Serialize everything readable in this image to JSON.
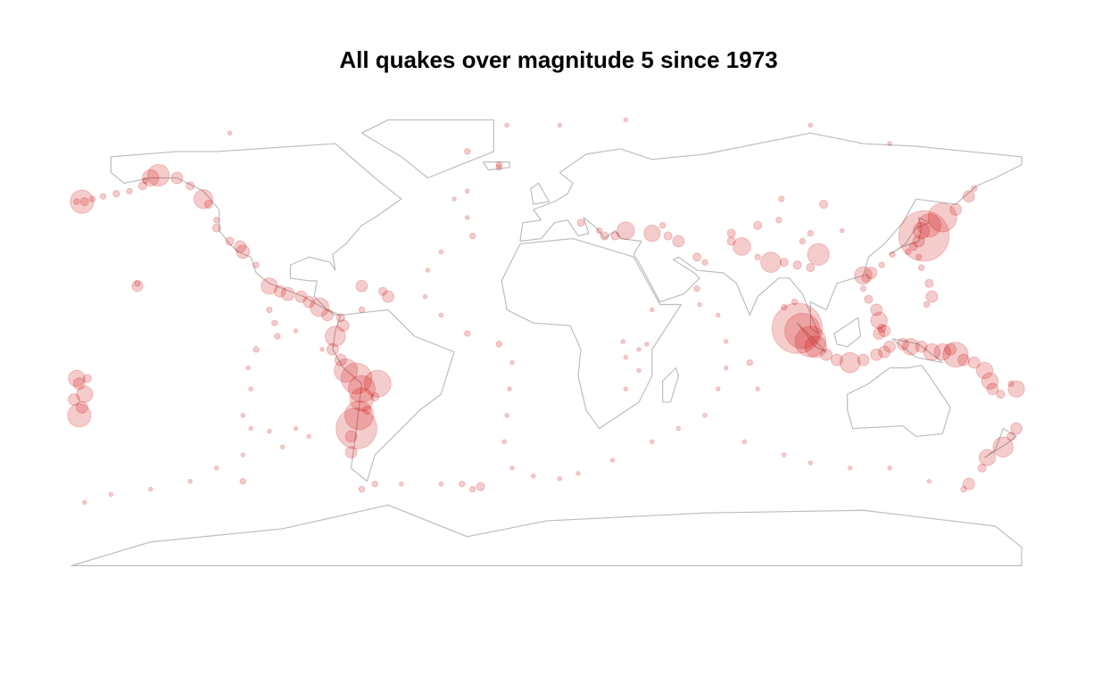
{
  "chart_data": {
    "type": "scatter",
    "title": "All quakes over magnitude 5 since 1973",
    "xlim": [
      -180,
      180
    ],
    "ylim": [
      -90,
      90
    ],
    "color": "#cc0000",
    "opacity": 0.2,
    "points": [
      [
        -178,
        51,
        6
      ],
      [
        -176,
        51,
        8
      ],
      [
        -175,
        51,
        6.5
      ],
      [
        -172,
        52,
        6
      ],
      [
        -168,
        53,
        6
      ],
      [
        -163,
        54,
        6.2
      ],
      [
        -158,
        55,
        6
      ],
      [
        -153,
        57,
        6.5
      ],
      [
        -150,
        60,
        7.5
      ],
      [
        -147,
        61,
        7.9
      ],
      [
        -140,
        60,
        7
      ],
      [
        -135,
        57,
        6.5
      ],
      [
        -130,
        52,
        7.7
      ],
      [
        -128,
        50,
        6.5
      ],
      [
        -152,
        59,
        6
      ],
      [
        162,
        56,
        6
      ],
      [
        160,
        53,
        7
      ],
      [
        155,
        48,
        7
      ],
      [
        150,
        45,
        8.3
      ],
      [
        145,
        42,
        8
      ],
      [
        143,
        38,
        9.1
      ],
      [
        142,
        40,
        7.5
      ],
      [
        141,
        36,
        7
      ],
      [
        139,
        34,
        6.5
      ],
      [
        137,
        32,
        6
      ],
      [
        131,
        31,
        6
      ],
      [
        127,
        27,
        6
      ],
      [
        123,
        24,
        7
      ],
      [
        121,
        22,
        6.5
      ],
      [
        120,
        18,
        6
      ],
      [
        122,
        14,
        6.5
      ],
      [
        125,
        10,
        7
      ],
      [
        126,
        6,
        7.5
      ],
      [
        127,
        3,
        6.5
      ],
      [
        126,
        1,
        7
      ],
      [
        128,
        2,
        7
      ],
      [
        141,
        30,
        6
      ],
      [
        142,
        26,
        6
      ],
      [
        145,
        20,
        6.5
      ],
      [
        146,
        15,
        7
      ],
      [
        144,
        12,
        6
      ],
      [
        95,
        3,
        9.1
      ],
      [
        97,
        2,
        8.6
      ],
      [
        100,
        -2,
        8.4
      ],
      [
        102,
        -4,
        7.9
      ],
      [
        106,
        -7,
        7
      ],
      [
        110,
        -9,
        7
      ],
      [
        115,
        -10,
        7.8
      ],
      [
        120,
        -9,
        7
      ],
      [
        125,
        -7,
        7
      ],
      [
        128,
        -6,
        7
      ],
      [
        130,
        -4,
        7
      ],
      [
        135,
        -3,
        7
      ],
      [
        138,
        -4,
        7.5
      ],
      [
        142,
        -4,
        7
      ],
      [
        146,
        -6,
        7.5
      ],
      [
        150,
        -6,
        7.5
      ],
      [
        153,
        -5,
        7
      ],
      [
        155,
        -7,
        8.1
      ],
      [
        158,
        -9,
        7
      ],
      [
        162,
        -10,
        7
      ],
      [
        166,
        -13,
        7.5
      ],
      [
        168,
        -17,
        7.5
      ],
      [
        169,
        -20,
        7
      ],
      [
        172,
        -22,
        6.5
      ],
      [
        176,
        -18,
        6
      ],
      [
        178,
        -20,
        7.5
      ],
      [
        -177,
        -18,
        7
      ],
      [
        -175,
        -22,
        7.5
      ],
      [
        -176,
        -27,
        7
      ],
      [
        -177,
        -30,
        8
      ],
      [
        -178,
        -16,
        7.5
      ],
      [
        -174,
        -16,
        6.5
      ],
      [
        -179,
        -24,
        7
      ],
      [
        178,
        -35,
        7
      ],
      [
        176,
        -38,
        6.5
      ],
      [
        173,
        -42,
        7.8
      ],
      [
        167,
        -46,
        7.5
      ],
      [
        165,
        -50,
        6.5
      ],
      [
        160,
        -56,
        7
      ],
      [
        158,
        -58,
        6
      ],
      [
        70,
        36,
        6.5
      ],
      [
        74,
        34,
        7.6
      ],
      [
        80,
        30,
        6
      ],
      [
        85,
        28,
        7.8
      ],
      [
        90,
        28,
        6.5
      ],
      [
        95,
        27,
        6.5
      ],
      [
        100,
        26,
        6.5
      ],
      [
        103,
        31,
        7.9
      ],
      [
        97,
        36,
        6
      ],
      [
        80,
        42,
        6.5
      ],
      [
        88,
        44,
        6
      ],
      [
        100,
        39,
        6
      ],
      [
        60,
        28,
        6
      ],
      [
        57,
        30,
        6.5
      ],
      [
        50,
        36,
        7
      ],
      [
        46,
        38,
        6.5
      ],
      [
        40,
        39,
        7.5
      ],
      [
        30,
        40,
        7.6
      ],
      [
        26,
        38,
        6.5
      ],
      [
        22,
        38,
        6.5
      ],
      [
        20,
        40,
        6
      ],
      [
        13,
        43,
        6.3
      ],
      [
        44,
        42,
        6
      ],
      [
        70,
        39,
        6.5
      ],
      [
        105,
        50,
        6.5
      ],
      [
        120,
        23,
        7.6
      ],
      [
        112,
        40,
        5.5
      ],
      [
        89,
        52,
        6
      ],
      [
        57,
        18,
        6
      ],
      [
        90,
        11,
        6
      ],
      [
        94,
        13,
        6
      ],
      [
        -30,
        70,
        6
      ],
      [
        -18,
        65,
        6
      ],
      [
        -30,
        55,
        5.5
      ],
      [
        -35,
        52,
        5.5
      ],
      [
        -30,
        45,
        5.5
      ],
      [
        -28,
        38,
        6
      ],
      [
        -40,
        32,
        5.5
      ],
      [
        -45,
        25,
        5.5
      ],
      [
        -46,
        15,
        5.5
      ],
      [
        -40,
        8,
        5.5
      ],
      [
        -30,
        1,
        6
      ],
      [
        -18,
        -3,
        6
      ],
      [
        -13,
        -10,
        5.5
      ],
      [
        -14,
        -20,
        5.5
      ],
      [
        -15,
        -30,
        5.5
      ],
      [
        -16,
        -40,
        5.5
      ],
      [
        -13,
        -50,
        5.5
      ],
      [
        -5,
        -53,
        5.5
      ],
      [
        5,
        -54,
        5.5
      ],
      [
        -25,
        -57,
        6.5
      ],
      [
        -28,
        -58,
        6
      ],
      [
        -32,
        -56,
        6
      ],
      [
        -40,
        -56,
        5.5
      ],
      [
        -55,
        -56,
        5.5
      ],
      [
        -70,
        -58,
        6
      ],
      [
        58,
        12,
        5.5
      ],
      [
        65,
        8,
        5.5
      ],
      [
        68,
        -2,
        5.5
      ],
      [
        68,
        -12,
        5.5
      ],
      [
        65,
        -20,
        5.5
      ],
      [
        60,
        -30,
        5.5
      ],
      [
        50,
        -35,
        5.5
      ],
      [
        40,
        -40,
        5.5
      ],
      [
        25,
        -47,
        5.5
      ],
      [
        12,
        -52,
        5.5
      ],
      [
        75,
        -40,
        5.5
      ],
      [
        90,
        -45,
        5.5
      ],
      [
        100,
        -48,
        5.5
      ],
      [
        115,
        -50,
        5.5
      ],
      [
        130,
        -50,
        5.5
      ],
      [
        145,
        -55,
        5.5
      ],
      [
        77,
        -10,
        6
      ],
      [
        80,
        -20,
        5.5
      ],
      [
        35,
        -5,
        5.5
      ],
      [
        30,
        -8,
        5.5
      ],
      [
        29,
        -2,
        5.5
      ],
      [
        35,
        -13,
        5.5
      ],
      [
        30,
        -20,
        5.5
      ],
      [
        40,
        10,
        5.5
      ],
      [
        38,
        -3,
        5.5
      ],
      [
        -125,
        44,
        6
      ],
      [
        -125,
        41,
        6.5
      ],
      [
        -120,
        36,
        6.5
      ],
      [
        -116,
        34,
        7
      ],
      [
        -115,
        32,
        7.2
      ],
      [
        -110,
        27,
        6
      ],
      [
        -105,
        19,
        7.5
      ],
      [
        -101,
        17,
        7
      ],
      [
        -98,
        16,
        7.2
      ],
      [
        -93,
        15,
        7
      ],
      [
        -90,
        13,
        7
      ],
      [
        -86,
        11,
        7.7
      ],
      [
        -83,
        8,
        7
      ],
      [
        -78,
        7,
        6.5
      ],
      [
        -77,
        4,
        7
      ],
      [
        -80,
        0,
        7.8
      ],
      [
        -81,
        -5,
        7
      ],
      [
        -78,
        -9,
        7
      ],
      [
        -76,
        -13,
        8
      ],
      [
        -72,
        -16,
        8.4
      ],
      [
        -70,
        -20,
        8.2
      ],
      [
        -70,
        -24,
        8
      ],
      [
        -71,
        -30,
        8.3
      ],
      [
        -72,
        -35,
        8.8
      ],
      [
        -74,
        -38,
        7
      ],
      [
        -74,
        -44,
        7
      ],
      [
        -65,
        -23,
        6.5
      ],
      [
        -64,
        -18,
        8.2
      ],
      [
        -68,
        -28,
        6.5
      ],
      [
        -60,
        15,
        7
      ],
      [
        -62,
        17,
        6.5
      ],
      [
        -70,
        19,
        7
      ],
      [
        -70,
        10,
        6
      ],
      [
        -65,
        -56,
        6
      ],
      [
        -105,
        10,
        6
      ],
      [
        -103,
        5,
        6
      ],
      [
        -102,
        0,
        6
      ],
      [
        -110,
        -5,
        6
      ],
      [
        -113,
        -12,
        5.5
      ],
      [
        -112,
        -20,
        5.5
      ],
      [
        -115,
        -30,
        5.5
      ],
      [
        -112,
        -35,
        5.5
      ],
      [
        -105,
        -36,
        5.5
      ],
      [
        -95,
        -35,
        5.5
      ],
      [
        -90,
        -38,
        5.5
      ],
      [
        -100,
        -42,
        5.5
      ],
      [
        -115,
        -45,
        5.5
      ],
      [
        -125,
        -50,
        5.5
      ],
      [
        -135,
        -55,
        5.5
      ],
      [
        -150,
        -58,
        5.5
      ],
      [
        -165,
        -60,
        5.5
      ],
      [
        -175,
        -63,
        5.5
      ],
      [
        -115,
        -55,
        6
      ],
      [
        -85,
        -5,
        5.5
      ],
      [
        -95,
        2,
        5.5
      ],
      [
        -155,
        19,
        6.9
      ],
      [
        -155,
        20,
        6
      ],
      [
        -18,
        64,
        6
      ],
      [
        -120,
        77,
        5.5
      ],
      [
        -15,
        80,
        5.5
      ],
      [
        5,
        80,
        5.5
      ],
      [
        30,
        82,
        5.5
      ],
      [
        100,
        80,
        5.5
      ],
      [
        130,
        73,
        5.5
      ]
    ]
  }
}
